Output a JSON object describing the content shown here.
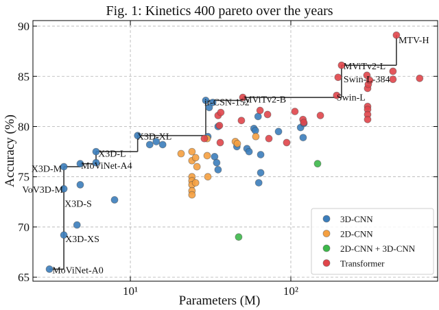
{
  "chart_data": {
    "type": "scatter",
    "title": "Fig. 1: Kinetics 400 pareto over the years",
    "x_label": "Parameters (M)",
    "y_label": "Accuracy (%)",
    "xscale": "log",
    "xlim": [
      2.47,
      822
    ],
    "ylim": [
      64.6,
      90.55
    ],
    "xticks": [
      {
        "value": 10,
        "label": "10¹"
      },
      {
        "value": 100,
        "label": "10²"
      }
    ],
    "yticks": [
      65,
      70,
      75,
      80,
      85,
      90
    ],
    "grid": true,
    "legend": "lower right",
    "series": [
      {
        "name": "3D-CNN",
        "color": "#3b7dbb",
        "x": [
          3.13,
          3.85,
          3.85,
          3.85,
          4.65,
          4.87,
          4.87,
          6.11,
          6.11,
          7.97,
          11.1,
          13.2,
          14.5,
          15.9,
          29.5,
          31.0,
          32.6,
          33.5,
          34.5,
          35.2,
          35.2,
          46.1,
          53.3,
          54.9,
          58.9,
          60.1,
          62.5,
          63.1,
          64.9,
          64.9,
          83.8,
          115,
          119.3,
          120.5,
          30.4
        ],
        "y": [
          65.8,
          69.2,
          73.8,
          76.0,
          70.2,
          76.3,
          74.2,
          77.5,
          76.4,
          72.7,
          79.1,
          78.2,
          78.5,
          78.2,
          82.6,
          81.9,
          82.4,
          77.0,
          76.4,
          75.7,
          80.0,
          78.0,
          77.8,
          77.5,
          79.8,
          79.6,
          81.0,
          74.4,
          77.2,
          75.4,
          79.5,
          79.9,
          78.9,
          80.3,
          79.0
        ]
      },
      {
        "name": "2D-CNN",
        "color": "#f5a040",
        "x": [
          20.7,
          24.2,
          24.2,
          24.2,
          24.2,
          24.2,
          24.2,
          24.2,
          25.5,
          25.5,
          26.0,
          30.1,
          30.1,
          30.4,
          45.1,
          46.4,
          60.5
        ],
        "y": [
          77.3,
          77.5,
          76.6,
          75.0,
          74.6,
          74.2,
          73.6,
          73.2,
          76.9,
          74.4,
          76.0,
          78.8,
          77.1,
          75.0,
          78.5,
          78.3,
          79.0
        ]
      },
      {
        "name": "2D-CNN + 3D-CNN",
        "color": "#3db84a",
        "x": [
          47.3,
          146.8
        ],
        "y": [
          69.0,
          76.3
        ]
      },
      {
        "name": "Transformer",
        "color": "#e0454a",
        "x": [
          28.9,
          35.2,
          35.9,
          36.3,
          36.6,
          49.2,
          50.2,
          64.3,
          71.6,
          73.0,
          94.2,
          106,
          119,
          120.5,
          152.8,
          193,
          197,
          207,
          298,
          301,
          301,
          301,
          301,
          301,
          304,
          310,
          433,
          433,
          455,
          635
        ],
        "y": [
          78.8,
          81.1,
          80.1,
          78.4,
          81.4,
          80.6,
          82.9,
          81.6,
          81.2,
          78.8,
          78.4,
          81.5,
          80.7,
          80.4,
          81.1,
          83.1,
          84.9,
          86.1,
          85.1,
          83.8,
          82.0,
          81.7,
          81.2,
          80.7,
          84.2,
          84.6,
          85.5,
          84.7,
          89.1,
          84.8
        ]
      }
    ],
    "frontier": {
      "color": "#333333",
      "x": [
        3.13,
        3.85,
        4.87,
        6.11,
        11.1,
        29.5,
        50.2,
        207,
        455
      ],
      "y": [
        65.8,
        76.0,
        76.3,
        77.5,
        79.1,
        82.6,
        82.9,
        86.1,
        89.1
      ]
    },
    "annotations": [
      {
        "text": "MTV-H",
        "x": 469,
        "y": 88.3,
        "anchor": "start"
      },
      {
        "text": "MViTv2-L",
        "x": 213,
        "y": 85.7,
        "anchor": "start"
      },
      {
        "text": "Swin-L-384",
        "x": 213,
        "y": 84.4,
        "anchor": "start"
      },
      {
        "text": "MViTv2-B",
        "x": 50.7,
        "y": 82.4,
        "anchor": "start"
      },
      {
        "text": "ir-CSN-152",
        "x": 28.9,
        "y": 82.1,
        "anchor": "start"
      },
      {
        "text": "Swin-L",
        "x": 193,
        "y": 82.6,
        "anchor": "start"
      },
      {
        "text": "X3D-XL",
        "x": 11.0,
        "y": 78.7,
        "anchor": "start"
      },
      {
        "text": "X3D-L",
        "x": 6.3,
        "y": 77.0,
        "anchor": "start"
      },
      {
        "text": "MoViNet-A4",
        "x": 4.92,
        "y": 75.8,
        "anchor": "start"
      },
      {
        "text": "X3D-M",
        "x": 3.74,
        "y": 75.5,
        "anchor": "end"
      },
      {
        "text": "VoV3D-M",
        "x": 3.81,
        "y": 73.4,
        "anchor": "end"
      },
      {
        "text": "X3D-S",
        "x": 3.89,
        "y": 72.0,
        "anchor": "start"
      },
      {
        "text": "X3D-XS",
        "x": 3.93,
        "y": 68.5,
        "anchor": "start"
      },
      {
        "text": "MoViNet-A0",
        "x": 3.26,
        "y": 65.4,
        "anchor": "start"
      }
    ]
  }
}
